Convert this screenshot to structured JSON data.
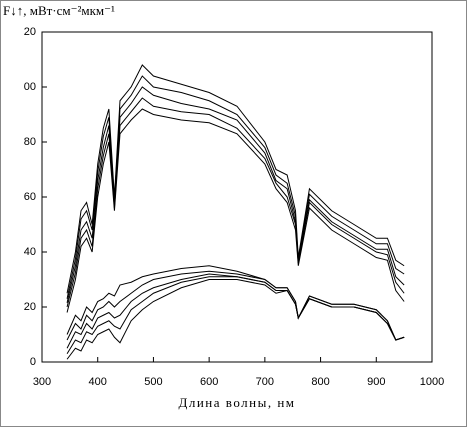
{
  "chart_data": {
    "type": "line",
    "ylabel": "F↓↑, мВт·см⁻²мкм⁻¹",
    "xlabel": "Длина волны, нм",
    "x": [
      345,
      360,
      370,
      380,
      390,
      400,
      410,
      420,
      430,
      440,
      460,
      480,
      500,
      550,
      600,
      650,
      700,
      720,
      740,
      755,
      760,
      780,
      820,
      860,
      900,
      920,
      935,
      950
    ],
    "series": [
      {
        "color": "#000000",
        "values": [
          18,
          30,
          42,
          45,
          40,
          60,
          72,
          80,
          55,
          83,
          88,
          92,
          90,
          88,
          87,
          83,
          72,
          63,
          58,
          48,
          35,
          56,
          48,
          43,
          38,
          37,
          26,
          22
        ]
      },
      {
        "color": "#000000",
        "values": [
          20,
          32.5,
          45,
          48,
          42,
          63,
          75,
          83,
          56,
          86,
          91,
          96,
          93,
          91,
          90,
          85,
          74,
          65,
          60,
          50,
          36,
          58,
          50,
          45,
          40,
          39,
          29,
          25
        ]
      },
      {
        "color": "#000000",
        "values": [
          21.5,
          35,
          48,
          51,
          45,
          66,
          78,
          86,
          57,
          89,
          94,
          100,
          97,
          94,
          92,
          88,
          76,
          66,
          63,
          51,
          36,
          59,
          51,
          46,
          41,
          41,
          31,
          28
        ]
      },
      {
        "color": "#000000",
        "values": [
          23,
          37.5,
          52,
          55,
          48,
          69,
          82,
          89,
          59,
          92,
          97,
          104,
          100,
          98,
          95,
          90,
          78,
          68,
          65,
          53,
          37,
          61,
          53,
          48,
          43,
          43,
          34,
          32
        ]
      },
      {
        "color": "#000000",
        "values": [
          25,
          40,
          55,
          58,
          50,
          72,
          85,
          92,
          60,
          95,
          100,
          108,
          104,
          101,
          98,
          93,
          80,
          70,
          68,
          55,
          38,
          63,
          55,
          50,
          45,
          45,
          37,
          35
        ]
      },
      {
        "color": "#000000",
        "values": [
          1,
          5,
          4,
          8,
          7,
          10,
          11,
          12,
          9,
          7,
          15,
          19,
          22,
          27,
          30,
          30,
          28,
          25,
          26,
          21,
          16,
          23,
          20,
          20,
          18,
          14,
          8,
          9
        ]
      },
      {
        "color": "#000000",
        "values": [
          3,
          8,
          7,
          11,
          10,
          13,
          14,
          15,
          13,
          12,
          19,
          22,
          25,
          29,
          31,
          31,
          29,
          26,
          26,
          21,
          16,
          23,
          20,
          20,
          18,
          14,
          8,
          9
        ]
      },
      {
        "color": "#000000",
        "values": [
          5,
          11,
          10,
          14,
          12,
          16,
          17,
          18,
          16,
          17,
          22,
          25,
          27,
          30,
          32,
          31,
          29,
          26,
          26,
          21,
          16,
          23,
          20,
          20,
          18,
          14,
          8,
          9
        ]
      },
      {
        "color": "#000000",
        "values": [
          8,
          14,
          12,
          17,
          15,
          19,
          20,
          22,
          20,
          22,
          25,
          28,
          30,
          32,
          33,
          32,
          30,
          27,
          27,
          22,
          16,
          24,
          21,
          21,
          19,
          15,
          8,
          9
        ]
      },
      {
        "color": "#000000",
        "values": [
          10,
          17,
          15,
          20,
          18,
          22,
          23,
          25,
          24,
          28,
          29,
          31,
          32,
          34,
          35,
          33,
          30,
          27,
          27,
          22,
          16,
          24,
          21,
          21,
          19,
          15,
          8,
          9
        ]
      }
    ],
    "xlim": [
      300,
      1000
    ],
    "xticks": [
      300,
      400,
      500,
      600,
      700,
      800,
      900,
      1000
    ],
    "ylim": [
      0,
      120
    ],
    "yticks": [
      0,
      20,
      40,
      60,
      80,
      {
        "value": 100,
        "label": "00"
      },
      {
        "value": 120,
        "label": "20"
      }
    ],
    "grid": false
  }
}
